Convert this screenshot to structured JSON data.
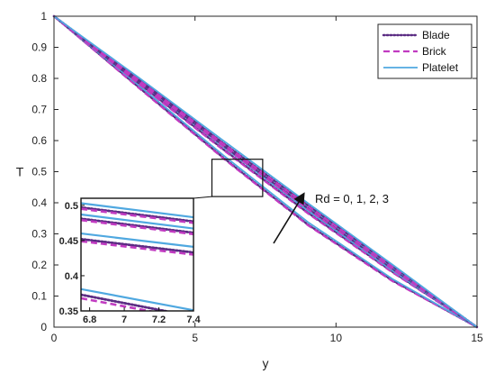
{
  "chart_data": {
    "type": "line",
    "xlabel": "y",
    "ylabel": "T",
    "xlim": [
      0,
      15
    ],
    "ylim": [
      0,
      1
    ],
    "xticks": [
      0,
      5,
      10,
      15
    ],
    "yticks": [
      0,
      0.1,
      0.2,
      0.3,
      0.4,
      0.5,
      0.6,
      0.7,
      0.8,
      0.9,
      1
    ],
    "grid": false,
    "legend_position": "top-right",
    "annotation": "Rd = 0, 1, 2, 3",
    "series": [
      {
        "name": "Blade",
        "color": "#5b2c83",
        "dash": "dotted"
      },
      {
        "name": "Brick",
        "color": "#c13bc1",
        "dash": "dashed"
      },
      {
        "name": "Platelet",
        "color": "#4fa8e0",
        "dash": "solid"
      }
    ],
    "curves": [
      {
        "rd": 0,
        "x": [
          0,
          3,
          6,
          9,
          12,
          15
        ],
        "Blade": [
          1,
          0.772,
          0.545,
          0.33,
          0.15,
          0
        ],
        "Brick": [
          1,
          0.77,
          0.543,
          0.328,
          0.148,
          0
        ],
        "Platelet": [
          1,
          0.778,
          0.553,
          0.338,
          0.155,
          0
        ]
      },
      {
        "rd": 1,
        "x": [
          0,
          3,
          6,
          9,
          12,
          15
        ],
        "Blade": [
          1,
          0.785,
          0.572,
          0.368,
          0.178,
          0
        ],
        "Brick": [
          1,
          0.783,
          0.57,
          0.366,
          0.176,
          0
        ],
        "Platelet": [
          1,
          0.791,
          0.58,
          0.375,
          0.182,
          0
        ]
      },
      {
        "rd": 2,
        "x": [
          0,
          3,
          6,
          9,
          12,
          15
        ],
        "Blade": [
          1,
          0.792,
          0.584,
          0.382,
          0.188,
          0
        ],
        "Brick": [
          1,
          0.79,
          0.582,
          0.38,
          0.186,
          0
        ],
        "Platelet": [
          1,
          0.798,
          0.592,
          0.389,
          0.193,
          0
        ]
      },
      {
        "rd": 3,
        "x": [
          0,
          3,
          6,
          9,
          12,
          15
        ],
        "Blade": [
          1,
          0.797,
          0.592,
          0.392,
          0.196,
          0
        ],
        "Brick": [
          1,
          0.795,
          0.59,
          0.39,
          0.194,
          0
        ],
        "Platelet": [
          1,
          0.803,
          0.6,
          0.399,
          0.201,
          0
        ]
      }
    ],
    "zoom_window": {
      "xlim": [
        5.6,
        7.4
      ],
      "ylim": [
        0.42,
        0.54
      ]
    },
    "inset": {
      "xlim": [
        6.75,
        7.4
      ],
      "ylim": [
        0.35,
        0.51
      ],
      "xticks": [
        6.8,
        7,
        7.2,
        7.4
      ],
      "xtick_labels": [
        "6.8",
        "7",
        "7.2",
        "7.4"
      ],
      "yticks": [
        0.35,
        0.4,
        0.45,
        0.5
      ],
      "ytick_labels": [
        "0.35",
        "0.4",
        "0.45",
        "0.5"
      ],
      "curves": [
        {
          "rd": 3,
          "x": [
            6.75,
            7.4
          ],
          "Blade": [
            0.497,
            0.477
          ],
          "Brick": [
            0.495,
            0.475
          ],
          "Platelet": [
            0.503,
            0.483
          ]
        },
        {
          "rd": 2,
          "x": [
            6.75,
            7.4
          ],
          "Blade": [
            0.481,
            0.461
          ],
          "Brick": [
            0.479,
            0.459
          ],
          "Platelet": [
            0.487,
            0.467
          ]
        },
        {
          "rd": 1,
          "x": [
            6.75,
            7.4
          ],
          "Blade": [
            0.452,
            0.433
          ],
          "Brick": [
            0.449,
            0.43
          ],
          "Platelet": [
            0.46,
            0.441
          ]
        },
        {
          "rd": 0,
          "x": [
            6.75,
            7.4
          ],
          "Blade": [
            0.373,
            0.342
          ],
          "Brick": [
            0.368,
            0.338
          ],
          "Platelet": [
            0.381,
            0.351
          ]
        }
      ]
    }
  }
}
